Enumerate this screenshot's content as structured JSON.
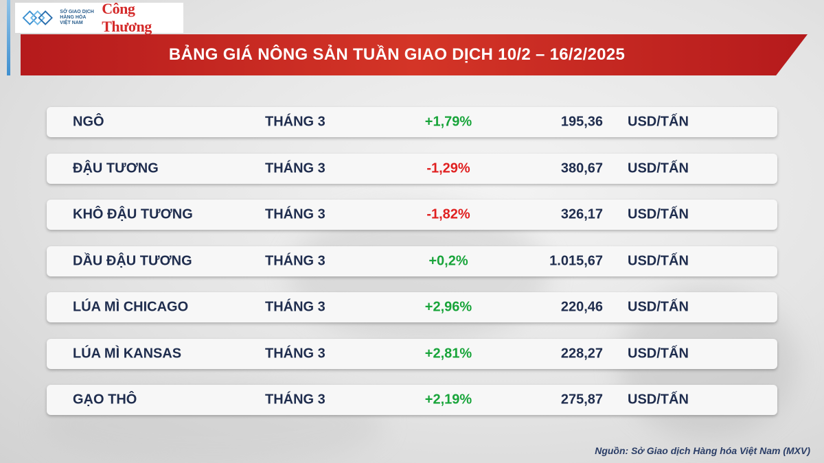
{
  "header": {
    "org_text": "SỞ GIAO DỊCH HÀNG HÓA VIỆT NAM",
    "brand": "Công Thương",
    "title": "BẢNG GIÁ NÔNG SẢN TUẦN GIAO DỊCH 10/2 – 16/2/2025"
  },
  "rows": [
    {
      "name": "NGÔ",
      "month": "THÁNG 3",
      "change": "+1,79%",
      "trend": "up",
      "price": "195,36",
      "unit": "USD/TẤN"
    },
    {
      "name": "ĐẬU TƯƠNG",
      "month": "THÁNG 3",
      "change": "-1,29%",
      "trend": "down",
      "price": "380,67",
      "unit": "USD/TẤN"
    },
    {
      "name": "KHÔ ĐẬU TƯƠNG",
      "month": "THÁNG 3",
      "change": "-1,82%",
      "trend": "down",
      "price": "326,17",
      "unit": "USD/TẤN"
    },
    {
      "name": "DẦU ĐẬU TƯƠNG",
      "month": "THÁNG 3",
      "change": "+0,2%",
      "trend": "up",
      "price": "1.015,67",
      "unit": "USD/TẤN"
    },
    {
      "name": "LÚA MÌ CHICAGO",
      "month": "THÁNG 3",
      "change": "+2,96%",
      "trend": "up",
      "price": "220,46",
      "unit": "USD/TẤN"
    },
    {
      "name": "LÚA MÌ KANSAS",
      "month": "THÁNG 3",
      "change": "+2,81%",
      "trend": "up",
      "price": "228,27",
      "unit": "USD/TẤN"
    },
    {
      "name": "GẠO THÔ",
      "month": "THÁNG 3",
      "change": "+2,19%",
      "trend": "up",
      "price": "275,87",
      "unit": "USD/TẤN"
    }
  ],
  "footer": {
    "source": "Nguồn: Sở Giao dịch Hàng hóa Việt Nam (MXV)"
  },
  "colors": {
    "banner": "#c8261f",
    "up": "#18a43a",
    "down": "#e02020",
    "text": "#1f2d4e"
  },
  "icons": {
    "org_logo": "mxv-logo-icon"
  }
}
